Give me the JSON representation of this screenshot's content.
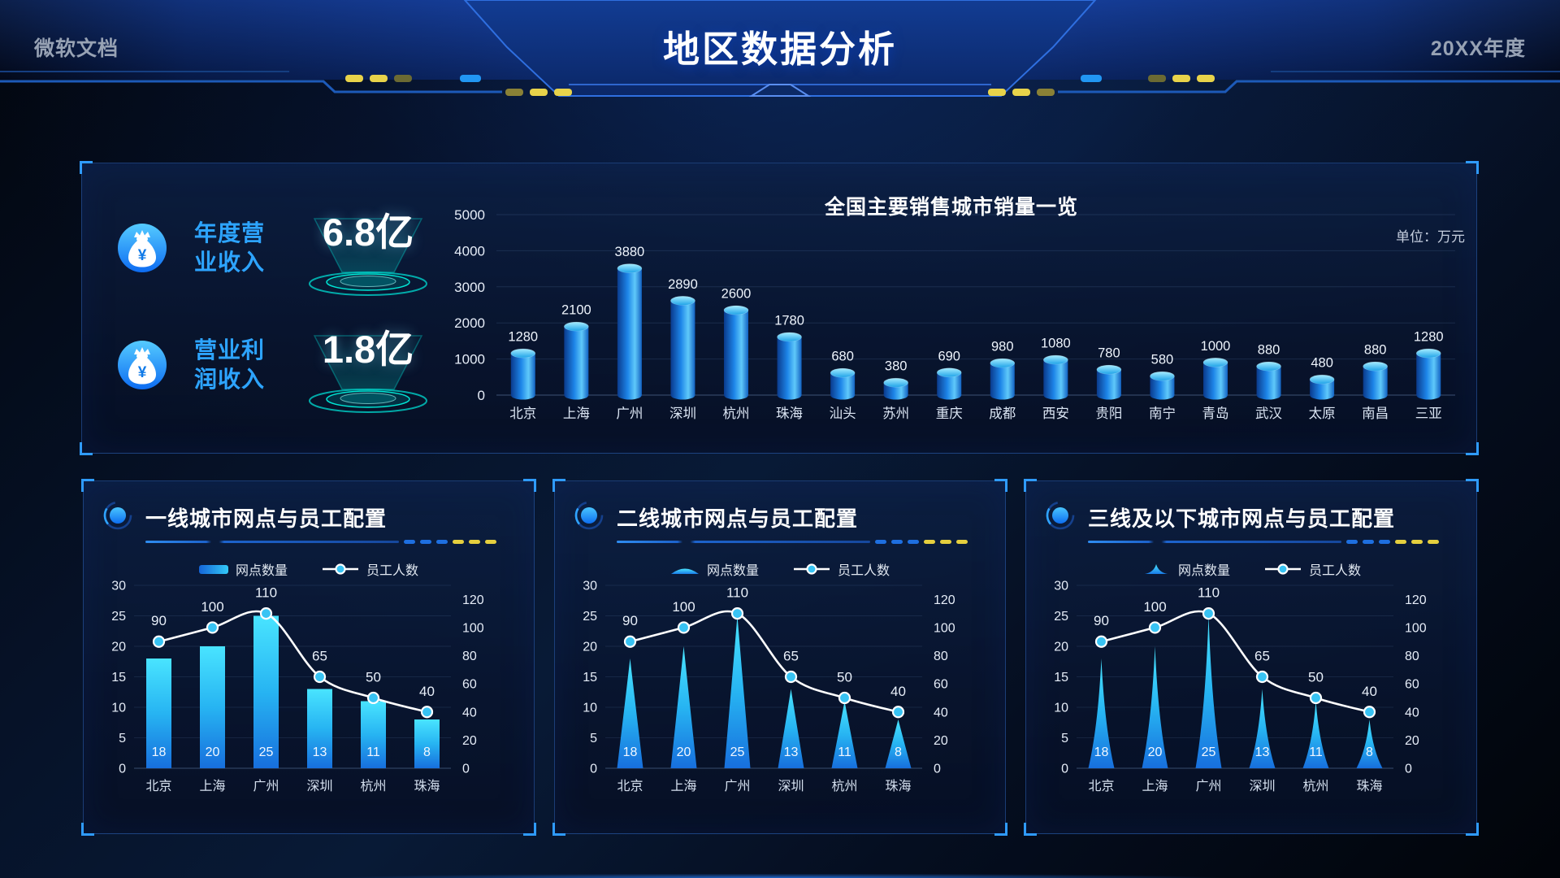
{
  "header": {
    "left_label": "微软文档",
    "title": "地区数据分析",
    "right_label": "20XX年度"
  },
  "kpis": [
    {
      "icon": "money-bag-icon",
      "label_lines": [
        "年度营",
        "业收入"
      ],
      "value": "6.8亿"
    },
    {
      "icon": "money-bag-icon",
      "label_lines": [
        "营业利",
        "润收入"
      ],
      "value": "1.8亿"
    }
  ],
  "colors": {
    "accent_blue": "#1e88e5",
    "accent_cyan": "#35d0ff",
    "accent_teal": "#00e0d0",
    "accent_yellow": "#e6cf3e",
    "line_white": "#ffffff",
    "panel_border": "#2b60b4"
  },
  "chart_data": [
    {
      "id": "national_sales",
      "type": "bar",
      "variant": "cylinder",
      "title": "全国主要销售城市销量一览",
      "unit": "单位：万元",
      "categories": [
        "北京",
        "上海",
        "广州",
        "深圳",
        "杭州",
        "珠海",
        "汕头",
        "苏州",
        "重庆",
        "成都",
        "西安",
        "贵阳",
        "南宁",
        "青岛",
        "武汉",
        "太原",
        "南昌",
        "三亚"
      ],
      "values": [
        1280,
        2100,
        3880,
        2890,
        2600,
        1780,
        680,
        380,
        690,
        980,
        1080,
        780,
        580,
        1000,
        880,
        480,
        880,
        1280
      ],
      "ylim": [
        0,
        5000
      ],
      "yticks": [
        0,
        1000,
        2000,
        3000,
        4000,
        5000
      ],
      "grid": true,
      "legend_position": "none"
    },
    {
      "id": "tier1_cities",
      "type": "bar",
      "variant": "bar",
      "title": "一线城市网点与员工配置",
      "categories": [
        "北京",
        "上海",
        "广州",
        "深圳",
        "杭州",
        "珠海"
      ],
      "series": [
        {
          "name": "网点数量",
          "type": "bar",
          "axis": "left",
          "values": [
            18,
            20,
            25,
            13,
            11,
            8
          ]
        },
        {
          "name": "员工人数",
          "type": "line",
          "axis": "right",
          "values": [
            90,
            100,
            110,
            65,
            50,
            40
          ]
        }
      ],
      "left_axis": {
        "min": 0,
        "max": 30,
        "step": 5
      },
      "right_axis": {
        "min": 0,
        "max": 120,
        "step": 20,
        "plot_max": 130
      },
      "grid": true,
      "legend_position": "top"
    },
    {
      "id": "tier2_cities",
      "type": "bar",
      "variant": "triangle",
      "title": "二线城市网点与员工配置",
      "categories": [
        "北京",
        "上海",
        "广州",
        "深圳",
        "杭州",
        "珠海"
      ],
      "series": [
        {
          "name": "网点数量",
          "type": "bar",
          "axis": "left",
          "values": [
            18,
            20,
            25,
            13,
            11,
            8
          ]
        },
        {
          "name": "员工人数",
          "type": "line",
          "axis": "right",
          "values": [
            90,
            100,
            110,
            65,
            50,
            40
          ]
        }
      ],
      "left_axis": {
        "min": 0,
        "max": 30,
        "step": 5
      },
      "right_axis": {
        "min": 0,
        "max": 120,
        "step": 20,
        "plot_max": 130
      },
      "grid": true,
      "legend_position": "top"
    },
    {
      "id": "tier3_cities",
      "type": "bar",
      "variant": "spike",
      "title": "三线及以下城市网点与员工配置",
      "categories": [
        "北京",
        "上海",
        "广州",
        "深圳",
        "杭州",
        "珠海"
      ],
      "series": [
        {
          "name": "网点数量",
          "type": "bar",
          "axis": "left",
          "values": [
            18,
            20,
            25,
            13,
            11,
            8
          ]
        },
        {
          "name": "员工人数",
          "type": "line",
          "axis": "right",
          "values": [
            90,
            100,
            110,
            65,
            50,
            40
          ]
        }
      ],
      "left_axis": {
        "min": 0,
        "max": 30,
        "step": 5
      },
      "right_axis": {
        "min": 0,
        "max": 120,
        "step": 20,
        "plot_max": 130
      },
      "grid": true,
      "legend_position": "top"
    }
  ]
}
